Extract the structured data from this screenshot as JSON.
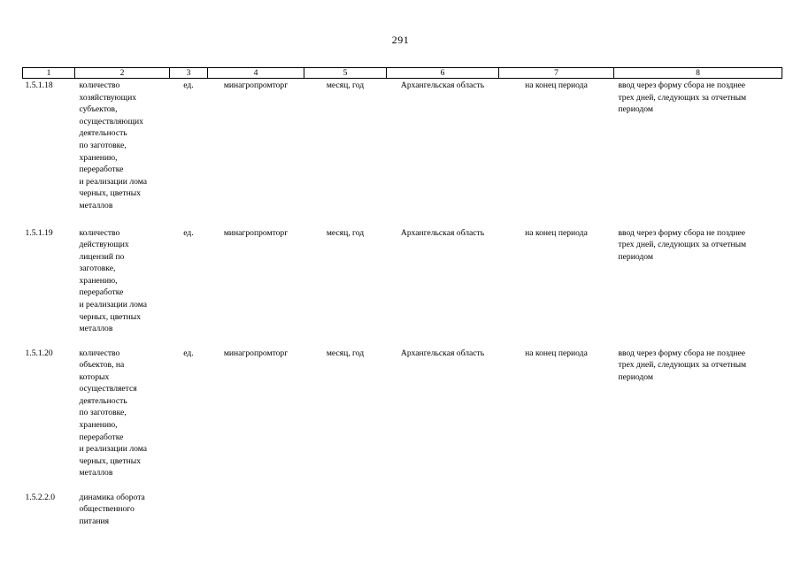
{
  "page": {
    "number": "291"
  },
  "table": {
    "headers": [
      "1",
      "2",
      "3",
      "4",
      "5",
      "6",
      "7",
      "8"
    ],
    "rows": [
      {
        "code": "1.5.1.18",
        "name": "количество\nхозяйствующих\nсубъектов,\nосуществляющих\nдеятельность\nпо заготовке,\nхранению,\nпереработке\nи реализации лома\nчерных, цветных\nметаллов",
        "unit": "ед.",
        "org": "минагропромторг",
        "period": "месяц, год",
        "territory": "Архангельская область",
        "moment": "на конец периода",
        "method": "ввод через форму сбора не позднее\nтрех дней, следующих за отчетным\nпериодом"
      },
      {
        "code": "1.5.1.19",
        "name": "количество\nдействующих\nлицензий по\nзаготовке,\nхранению,\nпереработке\nи реализации лома\nчерных, цветных\nметаллов",
        "unit": "ед.",
        "org": "минагропромторг",
        "period": "месяц, год",
        "territory": "Архангельская область",
        "moment": "на конец периода",
        "method": "ввод через форму сбора не позднее\nтрех дней, следующих за отчетным\nпериодом"
      },
      {
        "code": "1.5.1.20",
        "name": "количество\nобъектов, на\nкоторых\nосуществляется\nдеятельность\nпо заготовке,\nхранению,\nпереработке\nи реализации лома\nчерных, цветных\nметаллов",
        "unit": "ед.",
        "org": "минагропромторг",
        "period": "месяц, год",
        "territory": "Архангельская область",
        "moment": "на конец периода",
        "method": "ввод через форму сбора не позднее\nтрех дней, следующих за отчетным\nпериодом"
      },
      {
        "code": "1.5.2.2.0",
        "name": "динамика оборота\nобщественного\nпитания",
        "unit": "",
        "org": "",
        "period": "",
        "territory": "",
        "moment": "",
        "method": ""
      }
    ]
  }
}
